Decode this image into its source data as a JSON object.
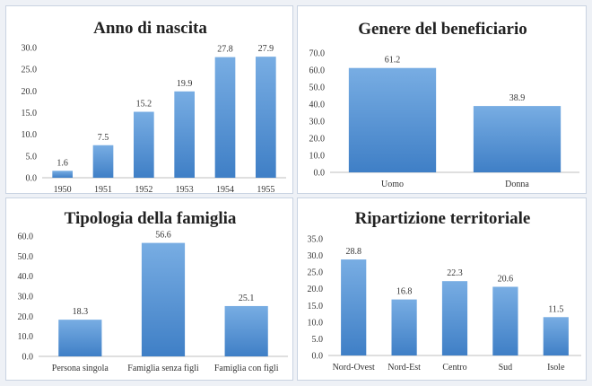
{
  "accent_color": "#5b9bd5",
  "bar_color_top": "#78ade3",
  "bar_color_bottom": "#3f7fc6",
  "chart_data": [
    {
      "id": "anno",
      "type": "bar",
      "title": "Anno di nascita",
      "categories": [
        "1950",
        "1951",
        "1952",
        "1953",
        "1954",
        "1955"
      ],
      "values": [
        1.6,
        7.5,
        15.2,
        19.9,
        27.8,
        27.9
      ],
      "value_labels": [
        "1.6",
        "7.5",
        "15.2",
        "19.9",
        "27.8",
        "27.9"
      ],
      "yticks": [
        "0.0",
        "5.0",
        "10.0",
        "15.0",
        "20.0",
        "25.0",
        "30.0"
      ],
      "ylim": [
        0,
        30
      ],
      "grid": false,
      "legend": "none"
    },
    {
      "id": "genere",
      "type": "bar",
      "title": "Genere del beneficiario",
      "categories": [
        "Uomo",
        "Donna"
      ],
      "values": [
        61.2,
        38.9
      ],
      "value_labels": [
        "61.2",
        "38.9"
      ],
      "yticks": [
        "0.0",
        "10.0",
        "20.0",
        "30.0",
        "40.0",
        "50.0",
        "60.0",
        "70.0"
      ],
      "ylim": [
        0,
        70
      ],
      "grid": false,
      "legend": "none"
    },
    {
      "id": "famiglia",
      "type": "bar",
      "title": "Tipologia della famiglia",
      "categories": [
        "Persona singola",
        "Famiglia senza figli",
        "Famiglia con figli"
      ],
      "values": [
        18.3,
        56.6,
        25.1
      ],
      "value_labels": [
        "18.3",
        "56.6",
        "25.1"
      ],
      "yticks": [
        "0.0",
        "10.0",
        "20.0",
        "30.0",
        "40.0",
        "50.0",
        "60.0"
      ],
      "ylim": [
        0,
        60
      ],
      "grid": false,
      "legend": "none"
    },
    {
      "id": "ripartizione",
      "type": "bar",
      "title": "Ripartizione territoriale",
      "categories": [
        "Nord-Ovest",
        "Nord-Est",
        "Centro",
        "Sud",
        "Isole"
      ],
      "values": [
        28.8,
        16.8,
        22.3,
        20.6,
        11.5
      ],
      "value_labels": [
        "28.8",
        "16.8",
        "22.3",
        "20.6",
        "11.5"
      ],
      "yticks": [
        "0.0",
        "5.0",
        "10.0",
        "15.0",
        "20.0",
        "25.0",
        "30.0",
        "35.0"
      ],
      "ylim": [
        0,
        35
      ],
      "grid": false,
      "legend": "none"
    }
  ]
}
